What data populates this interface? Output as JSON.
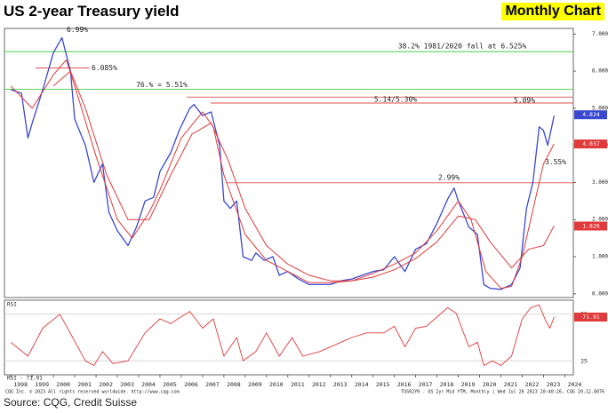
{
  "chart_data": {
    "type": "line",
    "title": "US 2-year Treasury yield",
    "subtitle": "Monthly Chart",
    "source": "Source: CQG, Credit Suisse",
    "footer_left": "CQG Inc. © 2023 All rights reserved worldwide. http://www.cqg.com",
    "footer_right": "TUS02YR - US 2yr Mid YTM, Monthly | Wed Jul 26 2023 20:40:26, CQG 20.12.8076",
    "xlim": [
      1997.7,
      2024.4
    ],
    "xticks": [
      1998,
      1999,
      2000,
      2001,
      2002,
      2003,
      2004,
      2005,
      2006,
      2007,
      2008,
      2009,
      2010,
      2011,
      2012,
      2013,
      2014,
      2015,
      2016,
      2017,
      2018,
      2019,
      2020,
      2021,
      2022,
      2023,
      2024
    ],
    "ylim": [
      -0.1,
      7.15
    ],
    "yticks": [
      {
        "value": 0,
        "label": "0.000"
      },
      {
        "value": 1,
        "label": "1.000"
      },
      {
        "value": 2,
        "label": "2.000"
      },
      {
        "value": 3,
        "label": "3.000"
      },
      {
        "value": 4,
        "label": "4.000"
      },
      {
        "value": 5,
        "label": "5.000"
      },
      {
        "value": 6,
        "label": "6.000"
      },
      {
        "value": 7,
        "label": "7.000"
      }
    ],
    "series": [
      {
        "color": "#3a48d0",
        "x": [
          1998.0,
          1998.5,
          1998.8,
          1999.0,
          1999.5,
          2000.0,
          2000.4,
          2000.8,
          2001.0,
          2001.5,
          2001.9,
          2002.3,
          2002.6,
          2003.0,
          2003.5,
          2003.9,
          2004.3,
          2004.7,
          2005.0,
          2005.5,
          2005.9,
          2006.4,
          2006.6,
          2007.0,
          2007.4,
          2007.8,
          2008.0,
          2008.3,
          2008.6,
          2008.9,
          2009.3,
          2009.5,
          2009.9,
          2010.3,
          2010.6,
          2011.0,
          2011.5,
          2012.0,
          2012.5,
          2013.0,
          2013.5,
          2014.0,
          2014.5,
          2015.0,
          2015.5,
          2016.0,
          2016.5,
          2017.0,
          2017.5,
          2018.0,
          2018.5,
          2018.8,
          2019.0,
          2019.5,
          2019.9,
          2020.2,
          2020.5,
          2021.0,
          2021.5,
          2021.9,
          2022.2,
          2022.5,
          2022.8,
          2023.0,
          2023.2,
          2023.5
        ],
        "values": [
          5.5,
          5.4,
          4.2,
          4.6,
          5.5,
          6.5,
          6.9,
          6.0,
          4.7,
          4.0,
          3.0,
          3.5,
          2.2,
          1.7,
          1.3,
          1.8,
          2.5,
          2.6,
          3.3,
          3.8,
          4.4,
          5.0,
          5.1,
          4.8,
          4.9,
          4.0,
          2.5,
          2.3,
          2.5,
          1.0,
          0.9,
          1.1,
          0.9,
          1.0,
          0.5,
          0.6,
          0.4,
          0.25,
          0.25,
          0.25,
          0.35,
          0.4,
          0.5,
          0.6,
          0.65,
          1.0,
          0.6,
          1.2,
          1.35,
          1.9,
          2.55,
          2.85,
          2.5,
          1.8,
          1.6,
          0.25,
          0.15,
          0.12,
          0.25,
          0.7,
          2.3,
          3.0,
          4.5,
          4.4,
          4.0,
          4.8
        ]
      },
      {
        "color": "#e03a3a",
        "x": [
          1998.0,
          1999.0,
          2000.0,
          2000.6,
          2001.0,
          2002.0,
          2003.0,
          2003.7,
          2004.5,
          2005.0,
          2006.0,
          2007.0,
          2007.5,
          2008.0,
          2009.0,
          2010.0,
          2011.0,
          2012.0,
          2013.0,
          2014.0,
          2015.0,
          2016.0,
          2017.0,
          2018.0,
          2019.0,
          2019.6,
          2020.3,
          2021.0,
          2021.5,
          2022.0,
          2023.0,
          2023.5
        ],
        "values": [
          5.6,
          5.0,
          5.9,
          6.3,
          5.6,
          3.7,
          2.0,
          1.5,
          2.2,
          2.8,
          4.2,
          4.9,
          4.5,
          3.2,
          1.6,
          0.9,
          0.6,
          0.3,
          0.3,
          0.35,
          0.55,
          0.8,
          1.1,
          1.7,
          2.5,
          2.0,
          0.6,
          0.15,
          0.2,
          1.0,
          3.5,
          4.04
        ]
      },
      {
        "color": "#e03a3a",
        "x": [
          2000.0,
          2000.8,
          2001.5,
          2002.5,
          2003.5,
          2004.5,
          2005.5,
          2006.5,
          2007.4,
          2008.2,
          2009.0,
          2010.0,
          2011.0,
          2012.0,
          2013.0,
          2014.0,
          2015.0,
          2016.0,
          2017.0,
          2018.0,
          2019.0,
          2019.8,
          2020.5,
          2021.5,
          2022.3,
          2023.0,
          2023.5
        ],
        "values": [
          5.6,
          6.0,
          5.0,
          3.2,
          2.0,
          2.0,
          3.2,
          4.3,
          4.6,
          3.6,
          2.3,
          1.3,
          0.8,
          0.5,
          0.35,
          0.35,
          0.45,
          0.65,
          0.95,
          1.4,
          2.1,
          2.0,
          1.4,
          0.7,
          1.2,
          1.3,
          1.83
        ]
      }
    ],
    "levels": [
      {
        "value": 6.525,
        "color": "#44cc44",
        "label": "38.2% 1981/2020 fall at 6.525%"
      },
      {
        "value": 5.51,
        "color": "#44cc44",
        "label": "76.% = 5.51%"
      },
      {
        "value": 5.3,
        "color": "#e05050"
      },
      {
        "value": 5.14,
        "color": "#e05050",
        "label": "5.14/5.30%"
      },
      {
        "value": 2.99,
        "color": "#e05050",
        "label": "2.99%"
      },
      {
        "value": 6.085,
        "color": "#e05050",
        "label": "6.085%"
      }
    ],
    "notes": [
      {
        "value": 6.99,
        "label": "6.99%"
      },
      {
        "value": 5.09,
        "label": "5.09%"
      },
      {
        "value": 3.55,
        "label": "3.55%"
      }
    ],
    "price_labels": [
      {
        "value": 4.824,
        "label": "4.824",
        "color": "#3a48d0"
      },
      {
        "value": 4.037,
        "label": "4.037",
        "color": "#e03a3a"
      },
      {
        "value": 1.826,
        "label": "1.826",
        "color": "#e03a3a"
      }
    ],
    "rsi": {
      "label": "RSI",
      "legend": "RSI - 71.91",
      "color": "#e03a3a",
      "ylim": [
        10,
        90
      ],
      "yticks": [
        25,
        75
      ],
      "last": 71.91,
      "last_label": "71.91",
      "x": [
        1998.0,
        1998.8,
        1999.5,
        2000.3,
        2000.9,
        2001.5,
        2001.9,
        2002.3,
        2002.8,
        2003.5,
        2004.3,
        2005.0,
        2005.5,
        2006.4,
        2007.0,
        2007.5,
        2008.0,
        2008.6,
        2008.9,
        2009.5,
        2010.0,
        2010.6,
        2011.2,
        2011.7,
        2012.5,
        2013.5,
        2014.0,
        2014.7,
        2015.5,
        2016.0,
        2016.5,
        2017.0,
        2017.5,
        2018.0,
        2018.5,
        2018.9,
        2019.5,
        2019.9,
        2020.2,
        2020.6,
        2021.0,
        2021.5,
        2022.0,
        2022.4,
        2022.8,
        2023.1,
        2023.3,
        2023.5
      ],
      "values": [
        45,
        30,
        60,
        75,
        50,
        25,
        20,
        35,
        22,
        25,
        55,
        70,
        65,
        78,
        60,
        70,
        30,
        50,
        25,
        35,
        55,
        30,
        50,
        30,
        35,
        45,
        50,
        55,
        55,
        62,
        40,
        60,
        62,
        72,
        82,
        76,
        40,
        45,
        20,
        25,
        20,
        30,
        70,
        82,
        85,
        68,
        60,
        71.91
      ]
    }
  }
}
